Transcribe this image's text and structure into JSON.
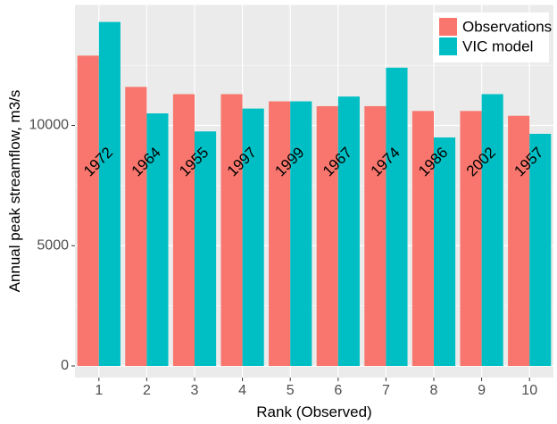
{
  "chart_data": {
    "type": "bar",
    "title": "",
    "xlabel": "Rank (Observed)",
    "ylabel": "Annual peak streamflow, m3/s",
    "categories": [
      "1",
      "2",
      "3",
      "4",
      "5",
      "6",
      "7",
      "8",
      "9",
      "10"
    ],
    "series": [
      {
        "name": "Observations",
        "color": "#F8766D",
        "values": [
          12900,
          11600,
          11300,
          11300,
          11000,
          10800,
          10800,
          10600,
          10600,
          10400
        ]
      },
      {
        "name": "VIC model",
        "color": "#00BFC4",
        "values": [
          14300,
          10500,
          9750,
          10700,
          11000,
          11200,
          12400,
          9500,
          11300,
          9650
        ]
      }
    ],
    "bar_labels": [
      "1972",
      "1964",
      "1955",
      "1997",
      "1999",
      "1967",
      "1974",
      "1986",
      "2002",
      "1957"
    ],
    "yticks": [
      0,
      5000,
      10000
    ],
    "ytick_labels": [
      "0",
      "5000",
      "10000"
    ],
    "ylim": [
      0,
      15000
    ],
    "grid": true,
    "legend_position": "top-right",
    "panel_color": "#EBEBEB"
  }
}
